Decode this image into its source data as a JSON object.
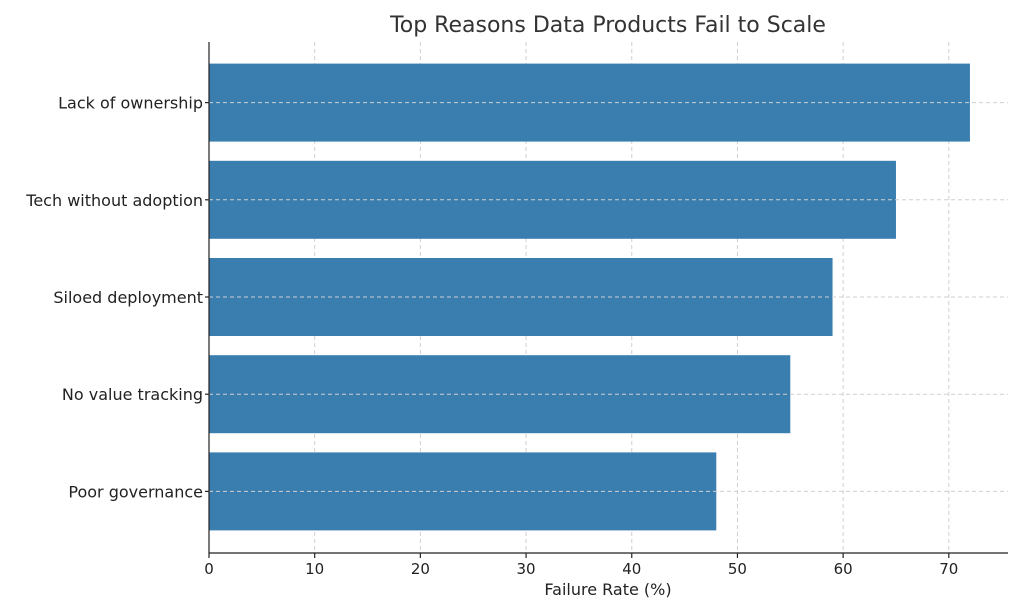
{
  "chart_data": {
    "type": "bar",
    "orientation": "horizontal",
    "title": "Top Reasons Data Products Fail to Scale",
    "xlabel": "Failure Rate (%)",
    "ylabel": "",
    "categories": [
      "Lack of ownership",
      "Tech without adoption",
      "Siloed deployment",
      "No value tracking",
      "Poor governance"
    ],
    "values": [
      72,
      65,
      59,
      55,
      48
    ],
    "xlim": [
      0,
      75.6
    ],
    "xticks": [
      0,
      10,
      20,
      30,
      40,
      50,
      60,
      70
    ],
    "grid": true,
    "bar_color": "#3a7eb0"
  }
}
